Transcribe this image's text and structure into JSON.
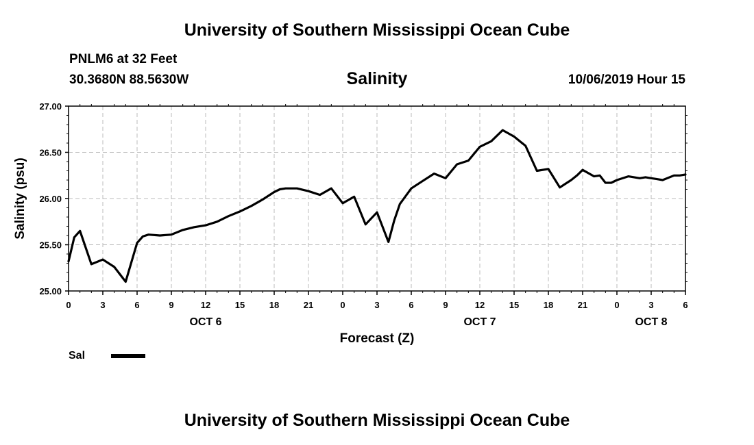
{
  "header": {
    "title": "University of Southern Mississippi Ocean Cube",
    "station": "PNLM6 at 32 Feet",
    "coordinates": "30.3680N 88.5630W",
    "issued": "10/06/2019 Hour 15"
  },
  "footer": {
    "title": "University of Southern Mississippi Ocean Cube"
  },
  "colors": {
    "line": "#000000",
    "grid": "#bbbbbb",
    "background": "#ffffff"
  },
  "chart_data": {
    "type": "line",
    "title": "Salinity",
    "xlabel": "Forecast (Z)",
    "ylabel": "Salinity (psu)",
    "ylim": [
      25.0,
      27.0
    ],
    "y_ticks": [
      "25.00",
      "25.50",
      "26.00",
      "26.50",
      "27.00"
    ],
    "x_hour_range": [
      0,
      54
    ],
    "x_tick_labels": [
      "0",
      "3",
      "6",
      "9",
      "12",
      "15",
      "18",
      "21",
      "0",
      "3",
      "6",
      "9",
      "12",
      "15",
      "18",
      "21",
      "0",
      "3",
      "6"
    ],
    "date_labels": [
      {
        "label": "OCT 6",
        "hour": 12
      },
      {
        "label": "OCT 7",
        "hour": 36
      },
      {
        "label": "OCT 8",
        "hour": 51
      }
    ],
    "grid": true,
    "legend": {
      "position": "bottom-left",
      "label": "Sal"
    },
    "series": [
      {
        "name": "Sal",
        "x": [
          0,
          0.5,
          1,
          2,
          3,
          4,
          5,
          6,
          6.5,
          7,
          8,
          9,
          10,
          11,
          12,
          13,
          14,
          15,
          16,
          17,
          18,
          18.5,
          19,
          20,
          21,
          22,
          23,
          24,
          25,
          26,
          27,
          28,
          28.5,
          29,
          30,
          31,
          32,
          33,
          34,
          35,
          36,
          37,
          38,
          39,
          40,
          41,
          42,
          43,
          43.5,
          44,
          44.5,
          45,
          46,
          46.5,
          47,
          47.5,
          48,
          49,
          50,
          50.5,
          51,
          51.5,
          52,
          53,
          53.5,
          54
        ],
        "values": [
          25.32,
          25.58,
          25.65,
          25.29,
          25.34,
          25.26,
          25.1,
          25.52,
          25.59,
          25.61,
          25.6,
          25.61,
          25.66,
          25.69,
          25.71,
          25.75,
          25.81,
          25.86,
          25.92,
          25.99,
          26.07,
          26.1,
          26.11,
          26.11,
          26.08,
          26.04,
          26.11,
          25.95,
          26.02,
          25.72,
          25.85,
          25.53,
          25.76,
          25.94,
          26.11,
          26.19,
          26.27,
          26.22,
          26.37,
          26.41,
          26.56,
          26.62,
          26.74,
          26.67,
          26.57,
          26.3,
          26.32,
          26.12,
          26.16,
          26.2,
          26.25,
          26.31,
          26.24,
          26.25,
          26.17,
          26.17,
          26.2,
          26.24,
          26.22,
          26.23,
          26.22,
          26.21,
          26.2,
          26.25,
          26.25,
          26.26
        ]
      }
    ]
  }
}
